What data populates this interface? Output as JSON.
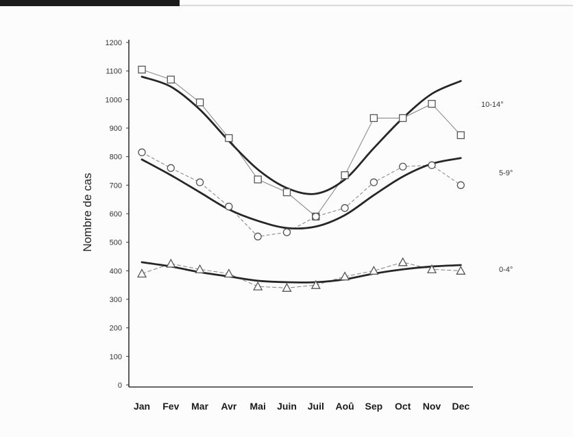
{
  "chart_data": {
    "type": "line",
    "ylabel": "Nombre de cas",
    "categories": [
      "Jan",
      "Fev",
      "Mar",
      "Avr",
      "Mai",
      "Juin",
      "Juil",
      "Aoû",
      "Sep",
      "Oct",
      "Nov",
      "Dec"
    ],
    "ylim": [
      0,
      1200
    ],
    "yticks": [
      0,
      100,
      200,
      300,
      400,
      500,
      600,
      700,
      800,
      900,
      1000,
      1100,
      1200
    ],
    "grid": false,
    "legend": "right",
    "colors": {
      "fit_line": "#262626",
      "marker": "#555555",
      "connector": "#8a8a8a"
    },
    "series": [
      {
        "name": "10-14°",
        "marker": "square",
        "values": [
          1105,
          1070,
          990,
          865,
          720,
          675,
          590,
          735,
          935,
          935,
          985,
          875
        ],
        "fit": [
          1080,
          1045,
          965,
          855,
          755,
          690,
          670,
          720,
          830,
          935,
          1020,
          1065
        ]
      },
      {
        "name": "5-9°",
        "marker": "circle",
        "values": [
          815,
          760,
          710,
          625,
          520,
          535,
          590,
          620,
          710,
          765,
          770,
          700
        ],
        "fit": [
          790,
          735,
          675,
          615,
          575,
          550,
          555,
          595,
          665,
          730,
          775,
          795
        ]
      },
      {
        "name": "0-4°",
        "marker": "triangle",
        "values": [
          390,
          425,
          405,
          390,
          345,
          340,
          350,
          380,
          400,
          430,
          405,
          400
        ],
        "fit": [
          430,
          415,
          395,
          380,
          365,
          360,
          360,
          370,
          390,
          405,
          415,
          420
        ]
      }
    ]
  }
}
